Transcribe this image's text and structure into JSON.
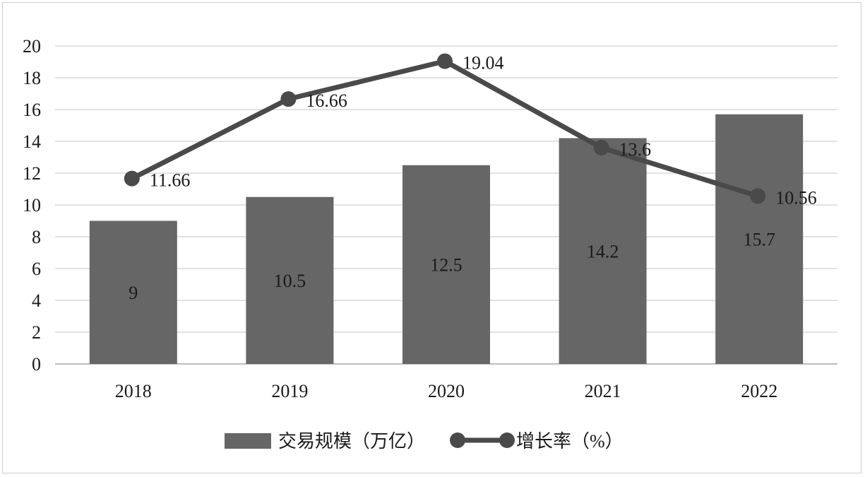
{
  "chart_data": {
    "type": "bar",
    "categories": [
      "2018",
      "2019",
      "2020",
      "2021",
      "2022"
    ],
    "series": [
      {
        "name": "交易规模（万亿）",
        "type": "bar",
        "values": [
          9,
          10.5,
          12.5,
          14.2,
          15.7
        ],
        "labels": [
          "9",
          "10.5",
          "12.5",
          "14.2",
          "15.7"
        ],
        "color": "#666666"
      },
      {
        "name": "增长率（%）",
        "type": "line",
        "values": [
          11.66,
          16.66,
          19.04,
          13.6,
          10.56
        ],
        "labels": [
          "11.66",
          "16.66",
          "19.04",
          "13.6",
          "10.56"
        ],
        "color": "#4a4a4a"
      }
    ],
    "yticks": [
      "0",
      "2",
      "4",
      "6",
      "8",
      "10",
      "12",
      "14",
      "16",
      "18",
      "20"
    ],
    "ylim": [
      0,
      20
    ],
    "grid": true,
    "legend": "bottom"
  }
}
